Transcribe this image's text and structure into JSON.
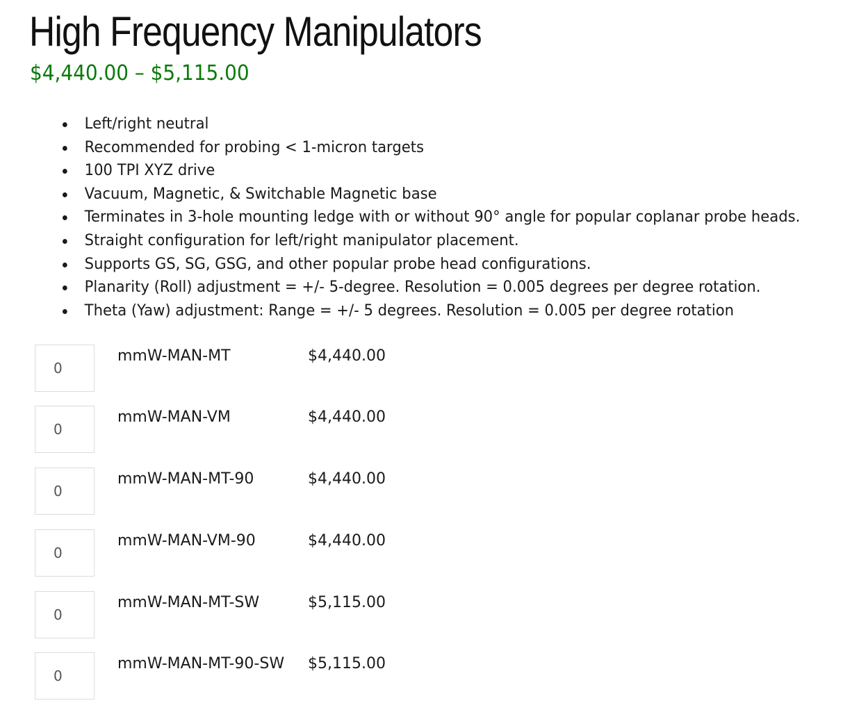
{
  "product": {
    "title": "High Frequency Manipulators",
    "price_range": "$4,440.00 – $5,115.00",
    "price_color": "#0a7a0a",
    "features": [
      "Left/right neutral",
      "Recommended for probing < 1-micron targets",
      "100 TPI XYZ drive",
      "Vacuum, Magnetic, & Switchable Magnetic base",
      "Terminates in 3-hole mounting ledge with or without 90° angle for popular coplanar probe heads.",
      "Straight configuration for left/right manipulator placement.",
      "Supports GS, SG, GSG, and other popular probe head configurations.",
      "Planarity (Roll) adjustment = +/- 5-degree.  Resolution = 0.005 degrees per degree rotation.",
      "Theta (Yaw) adjustment: Range = +/- 5 degrees.  Resolution = 0.005 per degree rotation"
    ],
    "variants": [
      {
        "qty": "0",
        "sku": "mmW-MAN-MT",
        "price": "$4,440.00"
      },
      {
        "qty": "0",
        "sku": "mmW-MAN-VM",
        "price": "$4,440.00"
      },
      {
        "qty": "0",
        "sku": "mmW-MAN-MT-90",
        "price": "$4,440.00"
      },
      {
        "qty": "0",
        "sku": "mmW-MAN-VM-90",
        "price": "$4,440.00"
      },
      {
        "qty": "0",
        "sku": "mmW-MAN-MT-SW",
        "price": "$5,115.00"
      },
      {
        "qty": "0",
        "sku": "mmW-MAN-MT-90-SW",
        "price": "$5,115.00"
      }
    ]
  }
}
